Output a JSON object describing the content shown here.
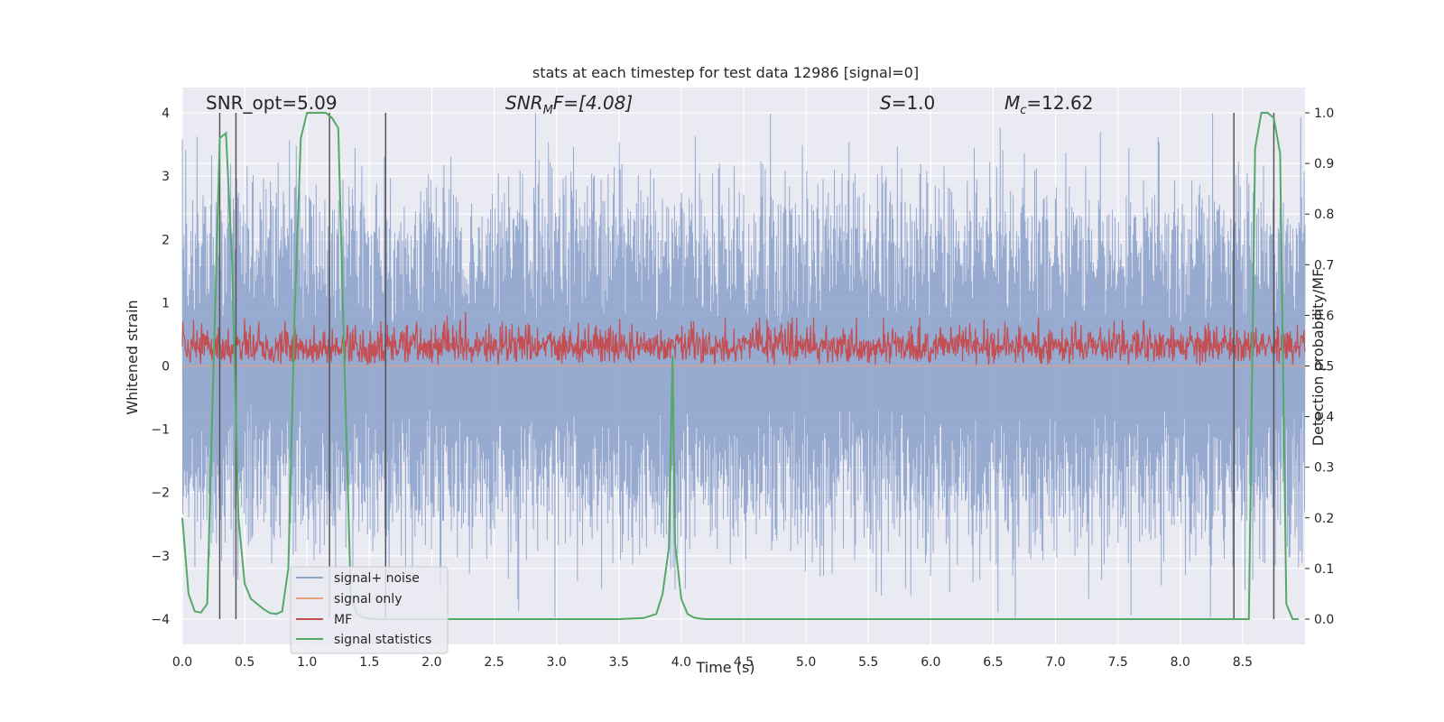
{
  "chart_data": {
    "type": "line",
    "title": "stats at each timestep for test data 12986 [signal=0]",
    "xlabel": "Time (s)",
    "ylabel": "Whitened strain",
    "y2label": "Detection probability/MF",
    "xlim": [
      0,
      9
    ],
    "ylim": [
      -4.4,
      4.4
    ],
    "y2lim": [
      -0.05,
      1.05
    ],
    "xticks": [
      "0.0",
      "0.5",
      "1.0",
      "1.5",
      "2.0",
      "2.5",
      "3.0",
      "3.5",
      "4.0",
      "4.5",
      "5.0",
      "5.5",
      "6.0",
      "6.5",
      "7.0",
      "7.5",
      "8.0",
      "8.5"
    ],
    "yticks": [
      "−4",
      "−3",
      "−2",
      "−1",
      "0",
      "1",
      "2",
      "3",
      "4"
    ],
    "y2ticks": [
      "0.0",
      "0.1",
      "0.2",
      "0.3",
      "0.4",
      "0.5",
      "0.6",
      "0.7",
      "0.8",
      "0.9",
      "1.0"
    ],
    "grid": true,
    "legend_position": "lower-left",
    "annotations": {
      "snr_opt": "SNR_opt=5.09",
      "snr_mf_prefix": "SNR",
      "snr_mf_sub": "M",
      "snr_mf_suffix": "F=[4.08]",
      "s_prefix": "S",
      "s_suffix": "=1.0",
      "mc_prefix": "M",
      "mc_sub": "c",
      "mc_suffix": "=12.62"
    },
    "series": [
      {
        "name": "signal+ noise",
        "color": "#8ea3cc",
        "kind": "noise",
        "amplitude_typical": 1.6,
        "amplitude_max": 4.0
      },
      {
        "name": "signal only",
        "color": "#e8a07e",
        "kind": "flat",
        "values": [
          0
        ]
      },
      {
        "name": "MF",
        "color": "#c44e52",
        "kind": "mf",
        "axis": "right",
        "range": [
          0.5,
          0.63
        ]
      },
      {
        "name": "signal statistics",
        "color": "#55a868",
        "axis": "right",
        "x": [
          0.0,
          0.05,
          0.1,
          0.15,
          0.2,
          0.25,
          0.3,
          0.35,
          0.4,
          0.45,
          0.5,
          0.55,
          0.6,
          0.65,
          0.7,
          0.75,
          0.8,
          0.85,
          0.9,
          0.95,
          1.0,
          1.05,
          1.1,
          1.15,
          1.2,
          1.25,
          1.3,
          1.35,
          1.4,
          1.45,
          1.5,
          1.55,
          1.6,
          1.65,
          1.7,
          1.75,
          1.8,
          1.85,
          1.9,
          2.0,
          2.5,
          3.0,
          3.5,
          3.7,
          3.8,
          3.85,
          3.9,
          3.93,
          3.95,
          4.0,
          4.05,
          4.1,
          4.15,
          4.2,
          4.25,
          4.5,
          5.0,
          6.0,
          7.0,
          8.0,
          8.3,
          8.4,
          8.44,
          8.45,
          8.5,
          8.55,
          8.6,
          8.65,
          8.7,
          8.75,
          8.8,
          8.85,
          8.9,
          8.95
        ],
        "values": [
          0.2,
          0.05,
          0.015,
          0.013,
          0.03,
          0.5,
          0.95,
          0.96,
          0.7,
          0.2,
          0.07,
          0.04,
          0.03,
          0.02,
          0.012,
          0.01,
          0.015,
          0.1,
          0.6,
          0.95,
          1.0,
          1.0,
          1.0,
          1.0,
          0.99,
          0.97,
          0.5,
          0.05,
          0.01,
          0.003,
          0.001,
          0.0,
          0.0,
          0.0,
          0.0,
          0.0,
          0.0,
          0.0,
          0.0,
          0.0,
          0.0,
          0.0,
          0.0,
          0.002,
          0.01,
          0.05,
          0.14,
          0.52,
          0.15,
          0.04,
          0.01,
          0.003,
          0.001,
          0.0,
          0.0,
          0.0,
          0.0,
          0.0,
          0.0,
          0.0,
          0.0,
          0.0,
          0.0,
          0.0,
          0.0,
          0.0,
          0.93,
          1.0,
          1.0,
          0.99,
          0.92,
          0.03,
          0.0,
          0.0
        ]
      }
    ],
    "vlines": [
      0.3,
      0.43,
      1.18,
      1.63,
      8.43,
      8.75
    ]
  }
}
